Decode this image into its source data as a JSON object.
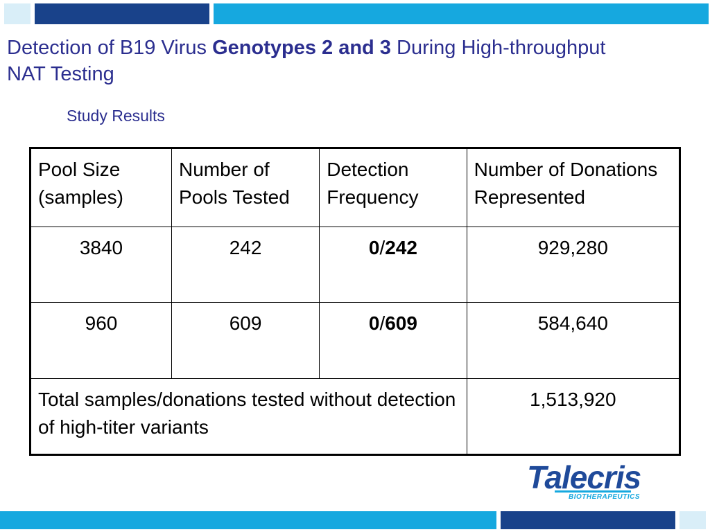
{
  "slide": {
    "title_part1": "Detection of B19 Virus ",
    "title_bold": "Genotypes 2 and 3",
    "title_part2": " During High-throughput NAT Testing",
    "subtitle": "Study Results"
  },
  "table": {
    "headers": [
      "Pool Size (samples)",
      "Number of Pools Tested",
      "Detection Frequency",
      "Number of Donations Represented"
    ],
    "rows": [
      {
        "pool_size": "3840",
        "pools_tested": "242",
        "detected": "0",
        "sep": "/",
        "total_pools": "242",
        "donations": "929,280"
      },
      {
        "pool_size": "960",
        "pools_tested": "609",
        "detected": "0",
        "sep": "/",
        "total_pools": "609",
        "donations": "584,640"
      }
    ],
    "total": {
      "label": "Total samples/donations tested without detection of high-titer variants",
      "value": "1,513,920"
    }
  },
  "logo": {
    "name": "Talecris",
    "tagline": "BIOTHERAPEUTICS"
  },
  "colors": {
    "accent_dark": "#19428a",
    "accent_light": "#16a8df",
    "title": "#2b2e8f"
  }
}
